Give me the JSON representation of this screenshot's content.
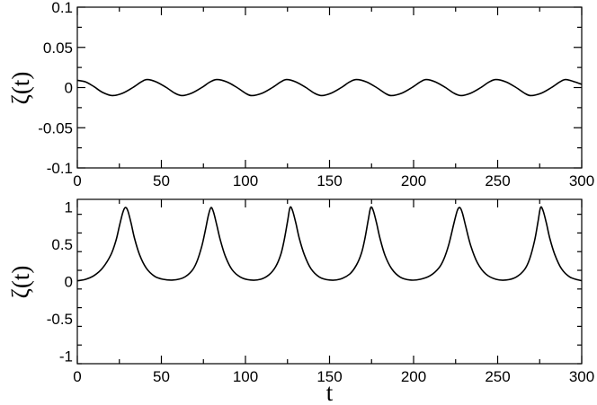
{
  "chart_data": [
    {
      "type": "line",
      "title": "",
      "xlabel": "",
      "ylabel": "ζ(t)",
      "xlim": [
        0,
        300
      ],
      "ylim": [
        -0.1,
        0.1
      ],
      "xticks": [
        0,
        50,
        100,
        150,
        200,
        250,
        300
      ],
      "xtick_labels": [
        "0",
        "50",
        "100",
        "150",
        "200",
        "250",
        "300"
      ],
      "yticks": [
        -0.1,
        -0.05,
        0,
        0.05,
        0.1
      ],
      "ytick_labels": [
        "-0.1",
        "-0.05",
        "0",
        "0.05",
        "0.1"
      ],
      "grid": false,
      "series": [
        {
          "x": [
            0,
            5,
            10,
            15,
            20.8,
            27,
            33,
            38,
            41.5,
            47,
            53,
            58,
            62.3,
            68,
            74,
            79,
            83,
            89,
            95,
            100,
            103.8,
            110,
            116,
            121,
            124.5,
            130,
            136,
            141,
            145.3,
            151,
            157,
            162,
            166,
            172,
            178,
            183,
            186.8,
            193,
            199,
            204,
            207.5,
            213,
            219,
            224,
            228.3,
            234,
            240,
            245,
            249,
            255,
            261,
            266,
            269.8,
            276,
            282,
            287,
            290.5,
            296,
            300
          ],
          "y": [
            0.009,
            0.007,
            0.001,
            -0.006,
            -0.01,
            -0.007,
            0.0,
            0.007,
            0.01,
            0.007,
            0.0,
            -0.007,
            -0.01,
            -0.007,
            0.0,
            0.007,
            0.01,
            0.007,
            0.0,
            -0.007,
            -0.01,
            -0.007,
            0.0,
            0.007,
            0.01,
            0.007,
            0.0,
            -0.007,
            -0.01,
            -0.007,
            0.0,
            0.007,
            0.01,
            0.007,
            0.0,
            -0.007,
            -0.01,
            -0.007,
            0.0,
            0.007,
            0.01,
            0.007,
            0.0,
            -0.007,
            -0.01,
            -0.007,
            0.0,
            0.007,
            0.01,
            0.007,
            0.0,
            -0.007,
            -0.01,
            -0.007,
            0.0,
            0.007,
            0.01,
            0.007,
            0.004
          ]
        }
      ]
    },
    {
      "type": "line",
      "title": "",
      "xlabel": "t",
      "ylabel": "ζ(t)",
      "xlim": [
        0,
        300
      ],
      "ylim": [
        -1.1,
        1.1
      ],
      "xticks": [
        0,
        50,
        100,
        150,
        200,
        250,
        300
      ],
      "xtick_labels": [
        "0",
        "50",
        "100",
        "150",
        "200",
        "250",
        "300"
      ],
      "yticks": [
        -1,
        -0.5,
        0,
        0.5,
        1
      ],
      "ytick_labels": [
        "-1",
        "-0.5",
        "0",
        "0.5",
        "1"
      ],
      "grid": false,
      "series": [
        {
          "x": [
            0,
            5,
            10,
            15,
            20,
            23,
            25,
            27,
            28.5,
            30,
            32,
            34,
            37,
            41,
            46,
            51,
            57,
            63,
            68,
            71,
            74,
            76,
            78,
            79.5,
            81,
            83,
            85,
            88,
            92,
            97,
            103,
            109,
            114,
            118,
            121,
            123,
            125,
            126.5,
            128,
            130,
            132,
            135,
            139,
            144,
            150,
            156,
            162,
            166,
            169,
            171,
            173,
            174.5,
            176,
            178,
            180,
            183,
            187,
            192,
            198,
            204,
            210,
            215,
            218,
            221,
            224,
            226,
            227.5,
            229,
            231,
            234,
            238,
            243,
            249,
            255,
            261,
            266,
            269,
            272,
            274,
            275.5,
            277,
            279,
            281,
            284,
            288,
            293,
            300
          ],
          "y": [
            0.01,
            0.03,
            0.08,
            0.18,
            0.36,
            0.55,
            0.74,
            0.92,
            0.99,
            0.95,
            0.78,
            0.58,
            0.36,
            0.18,
            0.07,
            0.03,
            0.02,
            0.05,
            0.14,
            0.26,
            0.47,
            0.67,
            0.89,
            0.99,
            0.93,
            0.75,
            0.56,
            0.34,
            0.16,
            0.06,
            0.02,
            0.03,
            0.09,
            0.2,
            0.36,
            0.55,
            0.8,
            0.99,
            0.95,
            0.78,
            0.58,
            0.36,
            0.17,
            0.06,
            0.02,
            0.03,
            0.1,
            0.22,
            0.38,
            0.57,
            0.82,
            0.99,
            0.95,
            0.78,
            0.58,
            0.35,
            0.17,
            0.06,
            0.02,
            0.03,
            0.08,
            0.18,
            0.3,
            0.5,
            0.78,
            0.95,
            0.99,
            0.92,
            0.74,
            0.48,
            0.25,
            0.1,
            0.03,
            0.02,
            0.06,
            0.16,
            0.3,
            0.55,
            0.8,
            0.99,
            0.95,
            0.78,
            0.58,
            0.36,
            0.17,
            0.06,
            0.01
          ]
        }
      ]
    }
  ]
}
